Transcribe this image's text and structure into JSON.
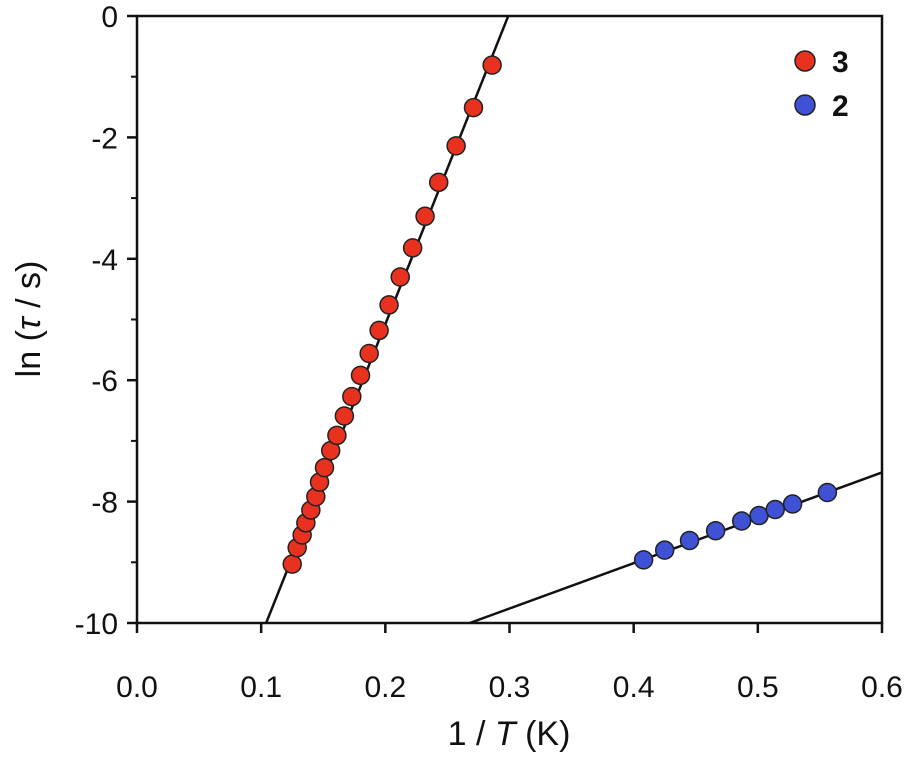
{
  "chart_data": {
    "type": "scatter",
    "xlabel": {
      "prefix": "1 / ",
      "var": "T",
      "suffix": " (K)"
    },
    "ylabel": {
      "prefix": "ln (",
      "var": "τ",
      "suffix": " / s)"
    },
    "xlim": [
      0.0,
      0.6
    ],
    "ylim": [
      -10,
      0
    ],
    "x_ticks": [
      0.0,
      0.1,
      0.2,
      0.3,
      0.4,
      0.5,
      0.6
    ],
    "x_tick_labels": [
      "0.0",
      "0.1",
      "0.2",
      "0.3",
      "0.4",
      "0.5",
      "0.6"
    ],
    "y_ticks": [
      0,
      -2,
      -4,
      -6,
      -8,
      -10
    ],
    "y_tick_labels": [
      "0",
      "-2",
      "-4",
      "-6",
      "-8",
      "-10"
    ],
    "grid": false,
    "legend_position": "top-right",
    "series": [
      {
        "name": "3",
        "color": "#e8321f",
        "points": [
          [
            0.125,
            -9.03
          ],
          [
            0.129,
            -8.76
          ],
          [
            0.133,
            -8.55
          ],
          [
            0.136,
            -8.35
          ],
          [
            0.14,
            -8.14
          ],
          [
            0.144,
            -7.92
          ],
          [
            0.147,
            -7.68
          ],
          [
            0.151,
            -7.44
          ],
          [
            0.156,
            -7.16
          ],
          [
            0.161,
            -6.91
          ],
          [
            0.167,
            -6.59
          ],
          [
            0.173,
            -6.27
          ],
          [
            0.18,
            -5.92
          ],
          [
            0.187,
            -5.56
          ],
          [
            0.195,
            -5.18
          ],
          [
            0.203,
            -4.76
          ],
          [
            0.212,
            -4.3
          ],
          [
            0.222,
            -3.82
          ],
          [
            0.232,
            -3.3
          ],
          [
            0.243,
            -2.74
          ],
          [
            0.257,
            -2.14
          ],
          [
            0.271,
            -1.51
          ],
          [
            0.286,
            -0.81
          ]
        ],
        "fit": [
          [
            0.104,
            -10.0
          ],
          [
            0.299,
            0.0
          ]
        ]
      },
      {
        "name": "2",
        "color": "#3f52d6",
        "points": [
          [
            0.408,
            -8.96
          ],
          [
            0.425,
            -8.8
          ],
          [
            0.445,
            -8.64
          ],
          [
            0.466,
            -8.48
          ],
          [
            0.487,
            -8.32
          ],
          [
            0.501,
            -8.23
          ],
          [
            0.514,
            -8.13
          ],
          [
            0.528,
            -8.04
          ],
          [
            0.556,
            -7.85
          ]
        ],
        "fit": [
          [
            0.268,
            -10.0
          ],
          [
            0.6,
            -7.52
          ]
        ]
      }
    ]
  }
}
